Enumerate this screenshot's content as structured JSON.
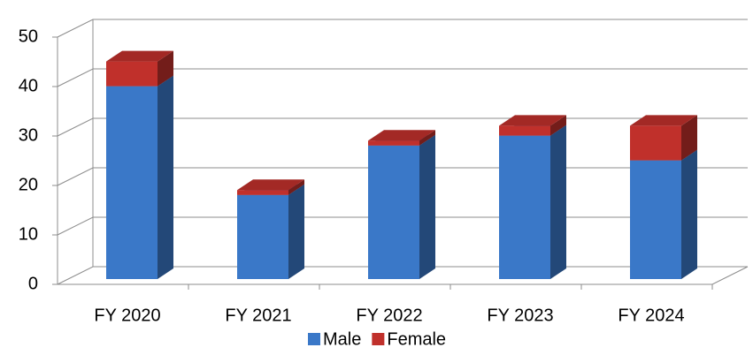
{
  "chart_data": {
    "type": "bar3d_stacked",
    "categories": [
      "FY 2020",
      "FY 2021",
      "FY 2022",
      "FY 2023",
      "FY 2024"
    ],
    "series": [
      {
        "name": "Male",
        "color": "#3a78c8",
        "values": [
          39,
          17,
          27,
          29,
          24
        ]
      },
      {
        "name": "Female",
        "color": "#c0302b",
        "values": [
          5,
          1,
          1,
          2,
          7
        ]
      }
    ],
    "ylim": [
      0,
      50
    ],
    "yticks": [
      0,
      10,
      20,
      30,
      40,
      50
    ],
    "grid": true,
    "legend": "bottom"
  }
}
